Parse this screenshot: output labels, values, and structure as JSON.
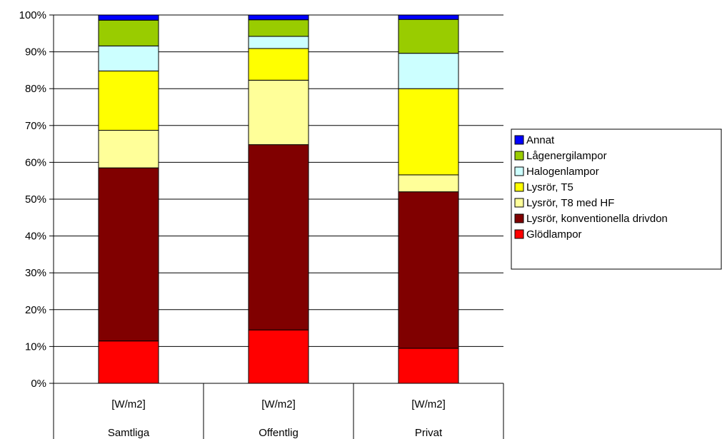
{
  "chart_data": {
    "type": "bar",
    "stacked": true,
    "percent": true,
    "categories": [
      {
        "unit": "[W/m2]",
        "name": "Samtliga"
      },
      {
        "unit": "[W/m2]",
        "name": "Offentlig"
      },
      {
        "unit": "[W/m2]",
        "name": "Privat"
      }
    ],
    "series": [
      {
        "name": "Glödlampor",
        "color": "#ff0000",
        "values": [
          11.5,
          14.5,
          9.5
        ]
      },
      {
        "name": "Lysrör, konventionella drivdon",
        "color": "#800000",
        "values": [
          47.0,
          50.3,
          42.5
        ]
      },
      {
        "name": "Lysrör, T8 med HF",
        "color": "#ffff99",
        "values": [
          10.2,
          17.5,
          4.6
        ]
      },
      {
        "name": "Lysrör, T5",
        "color": "#ffff00",
        "values": [
          16.1,
          8.6,
          23.4
        ]
      },
      {
        "name": "Halogenlampor",
        "color": "#ccffff",
        "values": [
          6.8,
          3.3,
          9.6
        ]
      },
      {
        "name": "Lågenergilampor",
        "color": "#99cc00",
        "values": [
          7.0,
          4.5,
          9.2
        ]
      },
      {
        "name": "Annat",
        "color": "#0000ff",
        "values": [
          1.4,
          1.3,
          1.2
        ]
      }
    ],
    "yticks": [
      "0%",
      "10%",
      "20%",
      "30%",
      "40%",
      "50%",
      "60%",
      "70%",
      "80%",
      "90%",
      "100%"
    ],
    "ylim": [
      0,
      100
    ],
    "grid": true,
    "legend": "right"
  }
}
